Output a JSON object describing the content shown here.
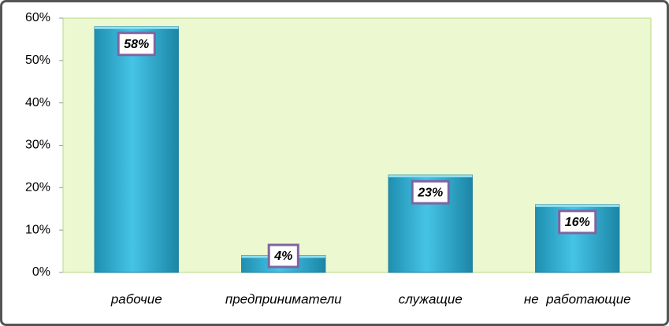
{
  "chart_data": {
    "type": "bar",
    "categories": [
      "рабочие",
      "предприниматели",
      "служащие",
      "не  работающие"
    ],
    "values": [
      58,
      4,
      23,
      16
    ],
    "value_labels": [
      "58%",
      "4%",
      "23%",
      "16%"
    ],
    "color": "#31b2d6",
    "ylim": [
      0,
      60
    ],
    "yticks": [
      {
        "value": 0,
        "label": "0%"
      },
      {
        "value": 10,
        "label": "10%"
      },
      {
        "value": 20,
        "label": "20%"
      },
      {
        "value": 30,
        "label": "30%"
      },
      {
        "value": 40,
        "label": "40%"
      },
      {
        "value": 50,
        "label": "50%"
      },
      {
        "value": 60,
        "label": "60%"
      }
    ]
  }
}
